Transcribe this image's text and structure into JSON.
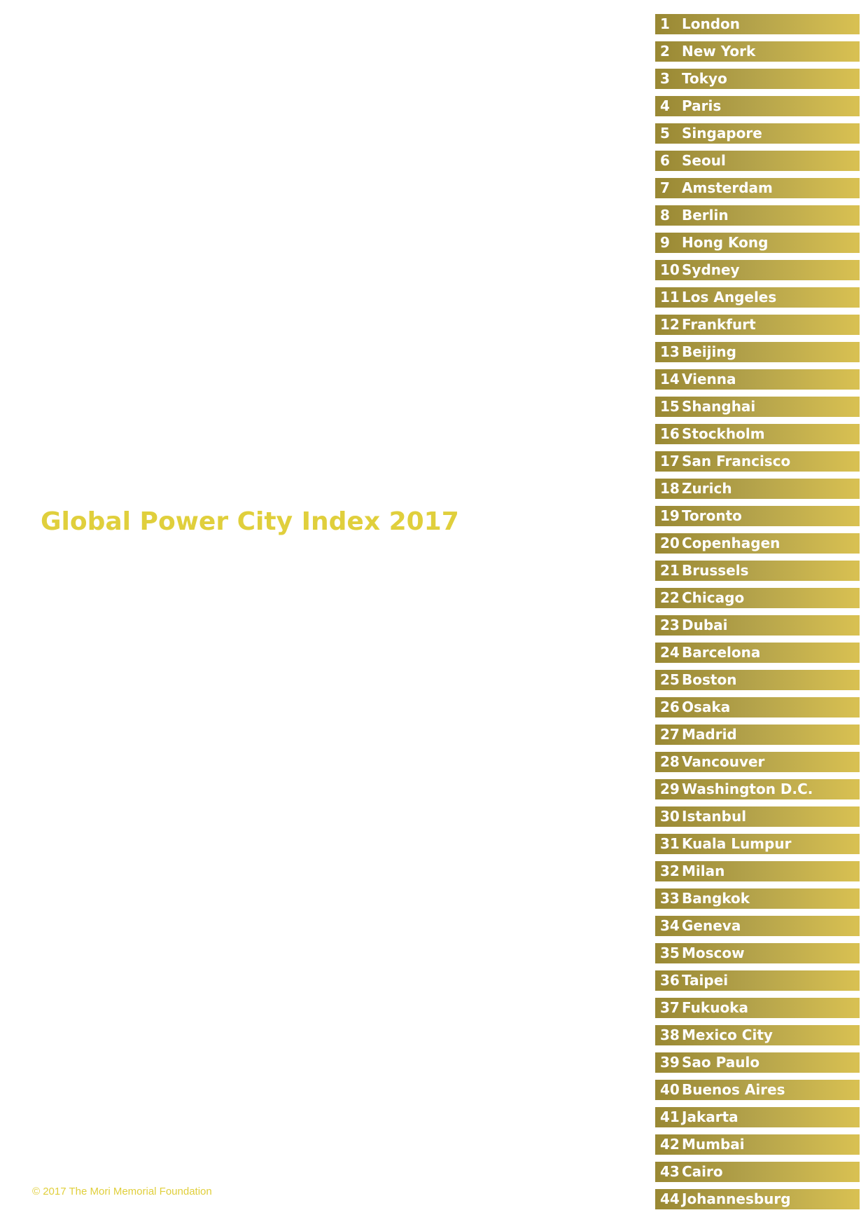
{
  "title": "Global Power City Index 2017",
  "copyright": "© 2017 The Mori Memorial Foundation",
  "colors": {
    "title": "#e0cf3c",
    "bar_start": "#998833",
    "bar_end": "#d9c152",
    "bar_text": "#ffffff"
  },
  "rankings": [
    {
      "rank": "1",
      "city": "London"
    },
    {
      "rank": "2",
      "city": "New York"
    },
    {
      "rank": "3",
      "city": "Tokyo"
    },
    {
      "rank": "4",
      "city": "Paris"
    },
    {
      "rank": "5",
      "city": "Singapore"
    },
    {
      "rank": "6",
      "city": "Seoul"
    },
    {
      "rank": "7",
      "city": "Amsterdam"
    },
    {
      "rank": "8",
      "city": "Berlin"
    },
    {
      "rank": "9",
      "city": "Hong Kong"
    },
    {
      "rank": "10",
      "city": "Sydney"
    },
    {
      "rank": "11",
      "city": "Los Angeles"
    },
    {
      "rank": "12",
      "city": "Frankfurt"
    },
    {
      "rank": "13",
      "city": "Beijing"
    },
    {
      "rank": "14",
      "city": "Vienna"
    },
    {
      "rank": "15",
      "city": "Shanghai"
    },
    {
      "rank": "16",
      "city": "Stockholm"
    },
    {
      "rank": "17",
      "city": "San Francisco"
    },
    {
      "rank": "18",
      "city": "Zurich"
    },
    {
      "rank": "19",
      "city": "Toronto"
    },
    {
      "rank": "20",
      "city": "Copenhagen"
    },
    {
      "rank": "21",
      "city": "Brussels"
    },
    {
      "rank": "22",
      "city": "Chicago"
    },
    {
      "rank": "23",
      "city": "Dubai"
    },
    {
      "rank": "24",
      "city": "Barcelona"
    },
    {
      "rank": "25",
      "city": "Boston"
    },
    {
      "rank": "26",
      "city": "Osaka"
    },
    {
      "rank": "27",
      "city": "Madrid"
    },
    {
      "rank": "28",
      "city": "Vancouver"
    },
    {
      "rank": "29",
      "city": "Washington D.C."
    },
    {
      "rank": "30",
      "city": "Istanbul"
    },
    {
      "rank": "31",
      "city": "Kuala Lumpur"
    },
    {
      "rank": "32",
      "city": "Milan"
    },
    {
      "rank": "33",
      "city": "Bangkok"
    },
    {
      "rank": "34",
      "city": "Geneva"
    },
    {
      "rank": "35",
      "city": "Moscow"
    },
    {
      "rank": "36",
      "city": "Taipei"
    },
    {
      "rank": "37",
      "city": "Fukuoka"
    },
    {
      "rank": "38",
      "city": "Mexico City"
    },
    {
      "rank": "39",
      "city": "Sao Paulo"
    },
    {
      "rank": "40",
      "city": "Buenos Aires"
    },
    {
      "rank": "41",
      "city": "Jakarta"
    },
    {
      "rank": "42",
      "city": "Mumbai"
    },
    {
      "rank": "43",
      "city": "Cairo"
    },
    {
      "rank": "44",
      "city": "Johannesburg"
    }
  ]
}
